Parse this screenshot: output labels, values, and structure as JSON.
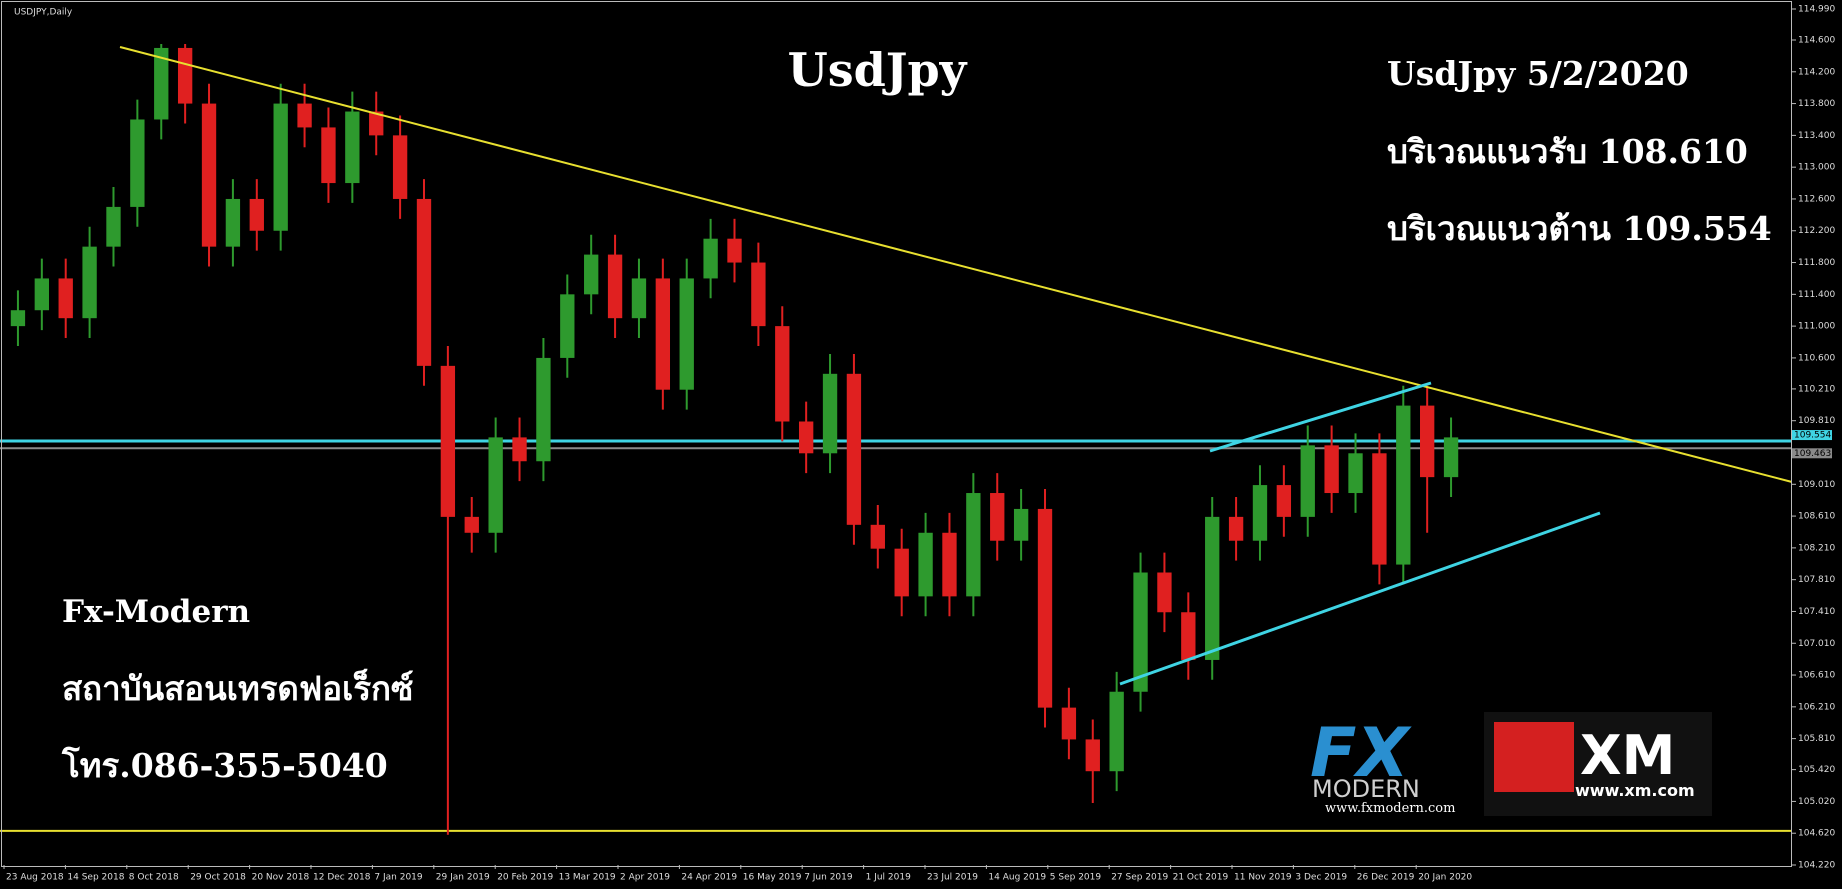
{
  "chart_data": {
    "type": "candlestick",
    "symbol": "USDJPY,Daily",
    "title": "UsdJpy",
    "annotations": [
      "UsdJpy 5/2/2020",
      "บริเวณแนวรับ 108.610",
      "บริเวณแนวต้าน 109.554"
    ],
    "brand": [
      "Fx-Modern",
      "สถาบันสอนเทรดฟอเร็กซ์",
      "โทร.086-355-5040"
    ],
    "logos": {
      "fx": "FX",
      "modern": "MODERN",
      "fx_url": "www.fxmodern.com",
      "xm": "XM",
      "xm_url": "www.xm.com"
    },
    "up_color": "#2e9a2e",
    "down_color": "#e02020",
    "x_labels": [
      "23 Aug 2018",
      "14 Sep 2018",
      "8 Oct 2018",
      "29 Oct 2018",
      "20 Nov 2018",
      "12 Dec 2018",
      "7 Jan 2019",
      "29 Jan 2019",
      "20 Feb 2019",
      "13 Mar 2019",
      "2 Apr 2019",
      "24 Apr 2019",
      "16 May 2019",
      "7 Jun 2019",
      "1 Jul 2019",
      "23 Jul 2019",
      "14 Aug 2019",
      "5 Sep 2019",
      "27 Sep 2019",
      "21 Oct 2019",
      "11 Nov 2019",
      "3 Dec 2019",
      "26 Dec 2019",
      "20 Jan 2020"
    ],
    "ylim": [
      104.22,
      114.99
    ],
    "yticks": [
      {
        "value": 114.99,
        "label": "114.990"
      },
      {
        "value": 114.6,
        "label": "114.600"
      },
      {
        "value": 114.2,
        "label": "114.200"
      },
      {
        "value": 113.8,
        "label": "113.800"
      },
      {
        "value": 113.4,
        "label": "113.400"
      },
      {
        "value": 113.0,
        "label": "113.000"
      },
      {
        "value": 112.6,
        "label": "112.600"
      },
      {
        "value": 112.2,
        "label": "112.200"
      },
      {
        "value": 111.8,
        "label": "111.800"
      },
      {
        "value": 111.4,
        "label": "111.400"
      },
      {
        "value": 111.0,
        "label": "111.000"
      },
      {
        "value": 110.6,
        "label": "110.600"
      },
      {
        "value": 110.21,
        "label": "110.210"
      },
      {
        "value": 109.81,
        "label": "109.810"
      },
      {
        "value": 109.01,
        "label": "109.010"
      },
      {
        "value": 108.61,
        "label": "108.610"
      },
      {
        "value": 108.21,
        "label": "108.210"
      },
      {
        "value": 107.81,
        "label": "107.810"
      },
      {
        "value": 107.41,
        "label": "107.410"
      },
      {
        "value": 107.01,
        "label": "107.010"
      },
      {
        "value": 106.61,
        "label": "106.610"
      },
      {
        "value": 106.21,
        "label": "106.210"
      },
      {
        "value": 105.81,
        "label": "105.810"
      },
      {
        "value": 105.42,
        "label": "105.420"
      },
      {
        "value": 105.02,
        "label": "105.020"
      },
      {
        "value": 104.62,
        "label": "104.620"
      },
      {
        "value": 104.22,
        "label": "104.220"
      }
    ],
    "levels": [
      {
        "value": 109.554,
        "color": "#3fd4e4",
        "tag": true
      },
      {
        "value": 109.463,
        "color": "#8a8a8a",
        "tag": true
      },
      {
        "value": 104.65,
        "color": "#e8e030",
        "tag": false
      }
    ],
    "ohlc": [
      [
        111.0,
        111.45,
        110.75,
        111.2
      ],
      [
        111.2,
        111.85,
        110.95,
        111.6
      ],
      [
        111.6,
        111.85,
        110.85,
        111.1
      ],
      [
        111.1,
        112.25,
        110.85,
        112.0
      ],
      [
        112.0,
        112.75,
        111.75,
        112.5
      ],
      [
        112.5,
        113.85,
        112.25,
        113.6
      ],
      [
        113.6,
        114.55,
        113.35,
        114.5
      ],
      [
        114.5,
        114.55,
        113.55,
        113.8
      ],
      [
        113.8,
        114.05,
        111.75,
        112.0
      ],
      [
        112.0,
        112.85,
        111.75,
        112.6
      ],
      [
        112.6,
        112.85,
        111.95,
        112.2
      ],
      [
        112.2,
        114.05,
        111.95,
        113.8
      ],
      [
        113.8,
        114.05,
        113.25,
        113.5
      ],
      [
        113.5,
        113.75,
        112.55,
        112.8
      ],
      [
        112.8,
        113.95,
        112.55,
        113.7
      ],
      [
        113.7,
        113.95,
        113.15,
        113.4
      ],
      [
        113.4,
        113.65,
        112.35,
        112.6
      ],
      [
        112.6,
        112.85,
        110.25,
        110.5
      ],
      [
        110.5,
        110.75,
        104.6,
        108.6
      ],
      [
        108.6,
        108.85,
        108.15,
        108.4
      ],
      [
        108.4,
        109.85,
        108.15,
        109.6
      ],
      [
        109.6,
        109.85,
        109.05,
        109.3
      ],
      [
        109.3,
        110.85,
        109.05,
        110.6
      ],
      [
        110.6,
        111.65,
        110.35,
        111.4
      ],
      [
        111.4,
        112.15,
        111.15,
        111.9
      ],
      [
        111.9,
        112.15,
        110.85,
        111.1
      ],
      [
        111.1,
        111.85,
        110.85,
        111.6
      ],
      [
        111.6,
        111.85,
        109.95,
        110.2
      ],
      [
        110.2,
        111.85,
        109.95,
        111.6
      ],
      [
        111.6,
        112.35,
        111.35,
        112.1
      ],
      [
        112.1,
        112.35,
        111.55,
        111.8
      ],
      [
        111.8,
        112.05,
        110.75,
        111.0
      ],
      [
        111.0,
        111.25,
        109.55,
        109.8
      ],
      [
        109.8,
        110.05,
        109.15,
        109.4
      ],
      [
        109.4,
        110.65,
        109.15,
        110.4
      ],
      [
        110.4,
        110.65,
        108.25,
        108.5
      ],
      [
        108.5,
        108.75,
        107.95,
        108.2
      ],
      [
        108.2,
        108.45,
        107.35,
        107.6
      ],
      [
        107.6,
        108.65,
        107.35,
        108.4
      ],
      [
        108.4,
        108.65,
        107.35,
        107.6
      ],
      [
        107.6,
        109.15,
        107.35,
        108.9
      ],
      [
        108.9,
        109.15,
        108.05,
        108.3
      ],
      [
        108.3,
        108.95,
        108.05,
        108.7
      ],
      [
        108.7,
        108.95,
        105.95,
        106.2
      ],
      [
        106.2,
        106.45,
        105.55,
        105.8
      ],
      [
        105.8,
        106.05,
        105.0,
        105.4
      ],
      [
        105.4,
        106.65,
        105.15,
        106.4
      ],
      [
        106.4,
        108.15,
        106.15,
        107.9
      ],
      [
        107.9,
        108.15,
        107.15,
        107.4
      ],
      [
        107.4,
        107.65,
        106.55,
        106.8
      ],
      [
        106.8,
        108.85,
        106.55,
        108.6
      ],
      [
        108.6,
        108.85,
        108.05,
        108.3
      ],
      [
        108.3,
        109.25,
        108.05,
        109.0
      ],
      [
        109.0,
        109.25,
        108.35,
        108.6
      ],
      [
        108.6,
        109.75,
        108.35,
        109.5
      ],
      [
        109.5,
        109.75,
        108.65,
        108.9
      ],
      [
        108.9,
        109.65,
        108.65,
        109.4
      ],
      [
        109.4,
        109.65,
        107.75,
        108.0
      ],
      [
        108.0,
        110.25,
        107.75,
        110.0
      ],
      [
        110.0,
        110.25,
        108.4,
        109.1
      ],
      [
        109.1,
        109.85,
        108.85,
        109.6
      ]
    ]
  }
}
